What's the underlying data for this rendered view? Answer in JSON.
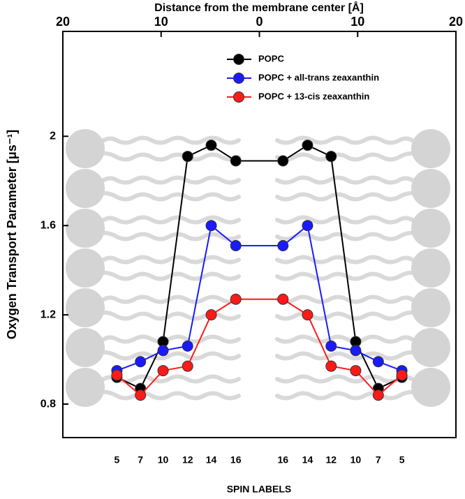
{
  "chart_data": {
    "type": "line",
    "title": "Distance from the membrane center [Å]",
    "xlabel": "SPIN LABELS",
    "ylabel": "Oxygen  Transport  Parameter  [μs⁻¹]",
    "x": [
      -14.5,
      -12.1,
      -9.8,
      -7.3,
      -4.9,
      -2.4,
      2.4,
      4.9,
      7.3,
      9.8,
      12.1,
      14.5
    ],
    "spin_labels": [
      5,
      7,
      10,
      12,
      14,
      16,
      16,
      14,
      12,
      10,
      7,
      5
    ],
    "series": [
      {
        "name": "POPC",
        "color": "#000000",
        "values": [
          0.92,
          0.87,
          1.08,
          1.91,
          1.96,
          1.89,
          1.89,
          1.96,
          1.91,
          1.08,
          0.87,
          0.92
        ]
      },
      {
        "name": "POPC + all-trans zeaxanthin",
        "color": "#1a1aff",
        "values": [
          0.95,
          0.99,
          1.04,
          1.06,
          1.6,
          1.51,
          1.51,
          1.6,
          1.06,
          1.04,
          0.99,
          0.95
        ]
      },
      {
        "name": "POPC + 13-cis zeaxanthin",
        "color": "#ff1a1a",
        "values": [
          0.93,
          0.84,
          0.95,
          0.97,
          1.2,
          1.27,
          1.27,
          1.2,
          0.97,
          0.95,
          0.84,
          0.93
        ]
      }
    ],
    "xlim": [
      -20,
      20
    ],
    "xticks": [
      {
        "value": -20,
        "label": "20"
      },
      {
        "value": -10,
        "label": "10"
      },
      0,
      10,
      20
    ],
    "ylim": [
      0.65,
      2.47
    ],
    "yticks": [
      0.8,
      1.2,
      1.6,
      2
    ],
    "legend": "top-right"
  }
}
